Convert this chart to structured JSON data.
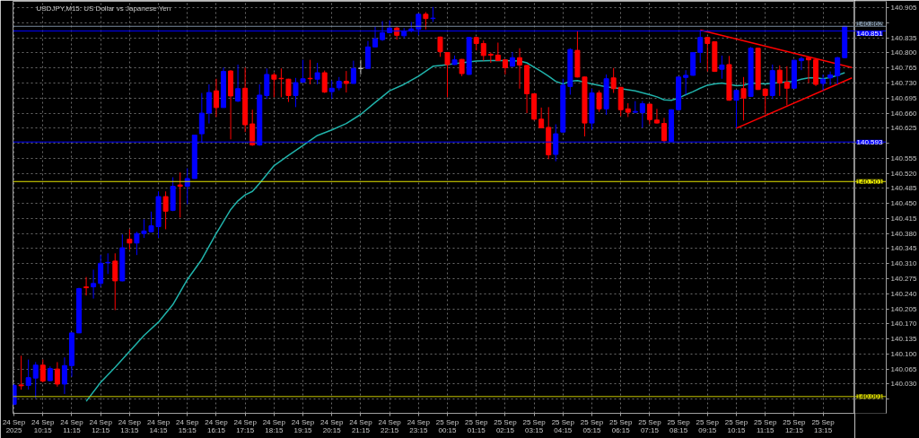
{
  "chart_data": {
    "type": "candlestick",
    "title": "USDJPY,M15: US Dollar vs Japanese Yen",
    "x": [
      "2025-09-24T09:15",
      "2025-09-24T09:30",
      "2025-09-24T09:45",
      "2025-09-24T10:00",
      "2025-09-24T10:15",
      "2025-09-24T10:30",
      "2025-09-24T10:45",
      "2025-09-24T11:00",
      "2025-09-24T11:15",
      "2025-09-24T11:30",
      "2025-09-24T11:45",
      "2025-09-24T12:00",
      "2025-09-24T12:15",
      "2025-09-24T12:30",
      "2025-09-24T12:45",
      "2025-09-24T13:00",
      "2025-09-24T13:15",
      "2025-09-24T13:30",
      "2025-09-24T13:45",
      "2025-09-24T14:00",
      "2025-09-24T14:15",
      "2025-09-24T14:30",
      "2025-09-24T14:45",
      "2025-09-24T15:00",
      "2025-09-24T15:15",
      "2025-09-24T15:30",
      "2025-09-24T15:45",
      "2025-09-24T16:00",
      "2025-09-24T16:15",
      "2025-09-24T16:30",
      "2025-09-24T16:45",
      "2025-09-24T17:00",
      "2025-09-24T17:15",
      "2025-09-24T17:30",
      "2025-09-24T17:45",
      "2025-09-24T18:00",
      "2025-09-24T18:15",
      "2025-09-24T18:30",
      "2025-09-24T18:45",
      "2025-09-24T19:00",
      "2025-09-24T19:15",
      "2025-09-24T19:30",
      "2025-09-24T19:45",
      "2025-09-24T20:00",
      "2025-09-24T20:15",
      "2025-09-24T20:30",
      "2025-09-24T20:45",
      "2025-09-24T21:00",
      "2025-09-24T21:15",
      "2025-09-24T21:30",
      "2025-09-24T21:45",
      "2025-09-24T22:00",
      "2025-09-24T22:15",
      "2025-09-24T22:30",
      "2025-09-24T22:45",
      "2025-09-24T23:00",
      "2025-09-24T23:15",
      "2025-09-24T23:30",
      "2025-09-24T23:45",
      "2025-09-25T00:00",
      "2025-09-25T00:15",
      "2025-09-25T00:30",
      "2025-09-25T00:45",
      "2025-09-25T01:00",
      "2025-09-25T01:15",
      "2025-09-25T01:30",
      "2025-09-25T01:45",
      "2025-09-25T02:00",
      "2025-09-25T02:15",
      "2025-09-25T02:30",
      "2025-09-25T02:45",
      "2025-09-25T03:00",
      "2025-09-25T03:15",
      "2025-09-25T03:30",
      "2025-09-25T03:45",
      "2025-09-25T04:00",
      "2025-09-25T04:15",
      "2025-09-25T04:30",
      "2025-09-25T04:45",
      "2025-09-25T05:00",
      "2025-09-25T05:15",
      "2025-09-25T05:30",
      "2025-09-25T05:45",
      "2025-09-25T06:00",
      "2025-09-25T06:15",
      "2025-09-25T06:30",
      "2025-09-25T06:45",
      "2025-09-25T07:00",
      "2025-09-25T07:15",
      "2025-09-25T07:30",
      "2025-09-25T07:45",
      "2025-09-25T08:00",
      "2025-09-25T08:15",
      "2025-09-25T08:30",
      "2025-09-25T08:45",
      "2025-09-25T09:00",
      "2025-09-25T09:15",
      "2025-09-25T09:30",
      "2025-09-25T09:45",
      "2025-09-25T10:00",
      "2025-09-25T10:15",
      "2025-09-25T10:30",
      "2025-09-25T10:45",
      "2025-09-25T11:00",
      "2025-09-25T11:15",
      "2025-09-25T11:30",
      "2025-09-25T11:45",
      "2025-09-25T12:00",
      "2025-09-25T12:15",
      "2025-09-25T12:30",
      "2025-09-25T12:45",
      "2025-09-25T13:00",
      "2025-09-25T13:15",
      "2025-09-25T13:30",
      "2025-09-25T13:45",
      "2025-09-25T14:00"
    ],
    "ohlc": [
      [
        139.983,
        140.03,
        139.981,
        140.027
      ],
      [
        140.028,
        140.096,
        140.017,
        140.026
      ],
      [
        140.027,
        140.087,
        140.017,
        140.045
      ],
      [
        140.044,
        140.081,
        139.997,
        140.074
      ],
      [
        140.074,
        140.087,
        140.034,
        140.037
      ],
      [
        140.038,
        140.071,
        140.037,
        140.066
      ],
      [
        140.065,
        140.081,
        140.024,
        140.03
      ],
      [
        140.03,
        140.092,
        140.007,
        140.073
      ],
      [
        140.073,
        140.151,
        140.047,
        140.149
      ],
      [
        140.149,
        140.254,
        140.149,
        140.252
      ],
      [
        140.256,
        140.279,
        140.236,
        140.254
      ],
      [
        140.256,
        140.296,
        140.229,
        140.264
      ],
      [
        140.264,
        140.33,
        140.256,
        140.311
      ],
      [
        140.312,
        140.334,
        140.286,
        140.313
      ],
      [
        140.316,
        140.334,
        140.202,
        140.27
      ],
      [
        140.27,
        140.378,
        140.269,
        140.347
      ],
      [
        140.367,
        140.39,
        140.343,
        140.358
      ],
      [
        140.358,
        140.384,
        140.33,
        140.38
      ],
      [
        140.38,
        140.413,
        140.37,
        140.386
      ],
      [
        140.384,
        140.431,
        140.384,
        140.398
      ],
      [
        140.396,
        140.478,
        140.37,
        140.466
      ],
      [
        140.466,
        140.478,
        140.39,
        140.432
      ],
      [
        140.434,
        140.511,
        140.432,
        140.49
      ],
      [
        140.493,
        140.522,
        140.417,
        140.49
      ],
      [
        140.49,
        140.532,
        140.448,
        140.508
      ],
      [
        140.508,
        140.61,
        140.508,
        140.609
      ],
      [
        140.612,
        140.707,
        140.592,
        140.66
      ],
      [
        140.66,
        140.727,
        140.636,
        140.708
      ],
      [
        140.712,
        140.74,
        140.651,
        140.673
      ],
      [
        140.673,
        140.766,
        140.673,
        140.757
      ],
      [
        140.758,
        140.76,
        140.599,
        140.7
      ],
      [
        140.688,
        140.773,
        140.686,
        140.717
      ],
      [
        140.718,
        140.766,
        140.616,
        140.633
      ],
      [
        140.635,
        140.668,
        140.584,
        140.586
      ],
      [
        140.586,
        140.727,
        140.584,
        140.702
      ],
      [
        140.701,
        140.764,
        140.693,
        140.75
      ],
      [
        140.749,
        140.754,
        140.697,
        140.739
      ],
      [
        140.741,
        140.764,
        140.697,
        140.74
      ],
      [
        140.739,
        140.74,
        140.686,
        140.701
      ],
      [
        140.701,
        140.742,
        140.674,
        140.731
      ],
      [
        140.732,
        140.784,
        140.73,
        140.74
      ],
      [
        140.741,
        140.784,
        140.727,
        140.74
      ],
      [
        140.739,
        140.777,
        140.727,
        140.754
      ],
      [
        140.754,
        140.759,
        140.707,
        140.709
      ],
      [
        140.71,
        140.736,
        140.693,
        140.718
      ],
      [
        140.719,
        140.744,
        140.713,
        140.734
      ],
      [
        140.734,
        140.758,
        140.708,
        140.729
      ],
      [
        140.729,
        140.782,
        140.729,
        140.764
      ],
      [
        140.764,
        140.784,
        140.75,
        140.764
      ],
      [
        140.764,
        140.828,
        140.764,
        140.814
      ],
      [
        140.814,
        140.861,
        140.814,
        140.833
      ],
      [
        140.831,
        140.874,
        140.828,
        140.847
      ],
      [
        140.847,
        140.876,
        140.846,
        140.858
      ],
      [
        140.858,
        140.861,
        140.831,
        140.841
      ],
      [
        140.84,
        140.858,
        140.834,
        140.851
      ],
      [
        140.851,
        140.872,
        140.848,
        140.856
      ],
      [
        140.855,
        140.892,
        140.841,
        140.89
      ],
      [
        140.89,
        140.895,
        140.855,
        140.88
      ],
      [
        140.88,
        140.907,
        140.872,
        140.881
      ],
      [
        140.837,
        140.838,
        140.791,
        140.803
      ],
      [
        140.801,
        140.802,
        140.697,
        140.773
      ],
      [
        140.773,
        140.794,
        140.772,
        140.784
      ],
      [
        140.785,
        140.786,
        140.746,
        140.752
      ],
      [
        140.75,
        140.837,
        140.749,
        140.836
      ],
      [
        140.836,
        140.837,
        140.806,
        140.822
      ],
      [
        140.822,
        140.829,
        140.782,
        140.794
      ],
      [
        140.797,
        140.801,
        140.777,
        140.795
      ],
      [
        140.795,
        140.824,
        140.781,
        140.782
      ],
      [
        140.784,
        140.785,
        140.75,
        140.766
      ],
      [
        140.769,
        140.802,
        140.768,
        140.789
      ],
      [
        140.789,
        140.811,
        140.717,
        140.772
      ],
      [
        140.771,
        140.772,
        140.66,
        140.705
      ],
      [
        140.705,
        140.706,
        140.643,
        140.646
      ],
      [
        140.646,
        140.673,
        140.625,
        140.626
      ],
      [
        140.627,
        140.674,
        140.553,
        140.563
      ],
      [
        140.564,
        140.634,
        140.548,
        140.612
      ],
      [
        140.616,
        140.74,
        140.615,
        140.725
      ],
      [
        140.722,
        140.811,
        140.703,
        140.808
      ],
      [
        140.806,
        140.851,
        140.743,
        140.744
      ],
      [
        140.744,
        140.745,
        140.606,
        140.637
      ],
      [
        140.637,
        140.717,
        140.622,
        140.707
      ],
      [
        140.707,
        140.713,
        140.663,
        140.67
      ],
      [
        140.67,
        140.75,
        140.656,
        140.74
      ],
      [
        140.742,
        140.765,
        140.707,
        140.717
      ],
      [
        140.72,
        140.721,
        140.653,
        140.668
      ],
      [
        140.67,
        140.683,
        140.651,
        140.662
      ],
      [
        140.662,
        140.688,
        140.66,
        140.664
      ],
      [
        140.661,
        140.688,
        140.626,
        140.682
      ],
      [
        140.681,
        140.682,
        140.634,
        140.645
      ],
      [
        140.644,
        140.67,
        140.636,
        140.637
      ],
      [
        140.636,
        140.649,
        140.592,
        140.596
      ],
      [
        140.594,
        140.669,
        140.593,
        140.668
      ],
      [
        140.668,
        140.745,
        140.667,
        140.744
      ],
      [
        140.743,
        140.76,
        140.703,
        140.748
      ],
      [
        140.748,
        140.802,
        140.747,
        140.801
      ],
      [
        140.801,
        140.853,
        140.777,
        140.836
      ],
      [
        140.836,
        140.837,
        140.757,
        140.822
      ],
      [
        140.826,
        140.827,
        140.756,
        140.757
      ],
      [
        140.762,
        140.794,
        140.74,
        140.772
      ],
      [
        140.773,
        140.793,
        140.689,
        140.69
      ],
      [
        140.69,
        140.714,
        140.626,
        140.713
      ],
      [
        140.717,
        140.744,
        140.643,
        140.695
      ],
      [
        140.699,
        140.814,
        140.698,
        140.811
      ],
      [
        140.811,
        140.812,
        140.714,
        140.715
      ],
      [
        140.716,
        140.717,
        140.657,
        140.701
      ],
      [
        140.701,
        140.773,
        140.693,
        140.759
      ],
      [
        140.76,
        140.771,
        140.7,
        140.73
      ],
      [
        140.732,
        140.769,
        140.678,
        140.718
      ],
      [
        140.718,
        140.784,
        140.717,
        140.783
      ],
      [
        140.782,
        140.791,
        140.76,
        140.787
      ],
      [
        140.789,
        140.791,
        140.73,
        140.784
      ],
      [
        140.784,
        140.787,
        140.723,
        140.727
      ],
      [
        140.729,
        140.75,
        140.713,
        140.739
      ],
      [
        140.742,
        140.757,
        140.725,
        140.749
      ],
      [
        140.747,
        140.791,
        140.727,
        140.789
      ],
      [
        140.789,
        140.863,
        140.788,
        140.862
      ]
    ],
    "colors": [
      "#0000ff",
      "#ff0000",
      "#0000ff",
      "#0000ff",
      "#ff0000",
      "#0000ff",
      "#ff0000",
      "#0000ff",
      "#0000ff",
      "#0000ff",
      "#ff0000",
      "#0000ff",
      "#0000ff",
      "#0000ff",
      "#ff0000",
      "#0000ff",
      "#ff0000",
      "#0000ff",
      "#0000ff",
      "#0000ff",
      "#0000ff",
      "#ff0000",
      "#0000ff",
      "#ff0000",
      "#0000ff",
      "#0000ff",
      "#0000ff",
      "#0000ff",
      "#ff0000",
      "#0000ff",
      "#ff0000",
      "#0000ff",
      "#ff0000",
      "#ff0000",
      "#0000ff",
      "#0000ff",
      "#ff0000",
      "#ff0000",
      "#ff0000",
      "#0000ff",
      "#0000ff",
      "#ff0000",
      "#0000ff",
      "#ff0000",
      "#0000ff",
      "#0000ff",
      "#ff0000",
      "#0000ff",
      "#c0c0c0",
      "#0000ff",
      "#0000ff",
      "#0000ff",
      "#0000ff",
      "#ff0000",
      "#0000ff",
      "#0000ff",
      "#0000ff",
      "#ff0000",
      "#0000ff",
      "#ff0000",
      "#ff0000",
      "#0000ff",
      "#ff0000",
      "#0000ff",
      "#ff0000",
      "#ff0000",
      "#ff0000",
      "#ff0000",
      "#ff0000",
      "#0000ff",
      "#ff0000",
      "#ff0000",
      "#ff0000",
      "#ff0000",
      "#ff0000",
      "#0000ff",
      "#0000ff",
      "#0000ff",
      "#ff0000",
      "#ff0000",
      "#0000ff",
      "#ff0000",
      "#0000ff",
      "#ff0000",
      "#ff0000",
      "#ff0000",
      "#0000ff",
      "#0000ff",
      "#ff0000",
      "#ff0000",
      "#ff0000",
      "#0000ff",
      "#0000ff",
      "#0000ff",
      "#0000ff",
      "#0000ff",
      "#ff0000",
      "#ff0000",
      "#0000ff",
      "#ff0000",
      "#0000ff",
      "#ff0000",
      "#0000ff",
      "#ff0000",
      "#ff0000",
      "#0000ff",
      "#ff0000",
      "#ff0000",
      "#0000ff",
      "#0000ff",
      "#ff0000",
      "#ff0000",
      "#0000ff",
      "#0000ff",
      "#0000ff",
      "#0000ff"
    ],
    "series": [
      {
        "type": "line",
        "color": "#20b2aa",
        "x": [
          "2025-09-24T11:45",
          "2025-09-24T12:15",
          "2025-09-24T12:45",
          "2025-09-24T13:15",
          "2025-09-24T13:45",
          "2025-09-24T14:15",
          "2025-09-24T14:45",
          "2025-09-24T15:15",
          "2025-09-24T15:45",
          "2025-09-24T16:15",
          "2025-09-24T16:45",
          "2025-09-24T17:00",
          "2025-09-24T17:15",
          "2025-09-24T17:30",
          "2025-09-24T17:45",
          "2025-09-24T18:15",
          "2025-09-24T18:45",
          "2025-09-24T19:15",
          "2025-09-24T19:45",
          "2025-09-24T20:15",
          "2025-09-24T20:45",
          "2025-09-24T21:15",
          "2025-09-24T21:45",
          "2025-09-24T22:15",
          "2025-09-24T22:45",
          "2025-09-24T23:15",
          "2025-09-24T23:45",
          "2025-09-25T00:00",
          "2025-09-25T00:15",
          "2025-09-25T00:45",
          "2025-09-25T01:15",
          "2025-09-25T01:45",
          "2025-09-25T02:15",
          "2025-09-25T02:45",
          "2025-09-25T03:00",
          "2025-09-25T03:15",
          "2025-09-25T03:30",
          "2025-09-25T03:45",
          "2025-09-25T04:00",
          "2025-09-25T04:15",
          "2025-09-25T04:30",
          "2025-09-25T04:45",
          "2025-09-25T05:15",
          "2025-09-25T05:45",
          "2025-09-25T06:15",
          "2025-09-25T06:45",
          "2025-09-25T07:15",
          "2025-09-25T07:30",
          "2025-09-25T07:45",
          "2025-09-25T08:00",
          "2025-09-25T08:15",
          "2025-09-25T08:30",
          "2025-09-25T08:45",
          "2025-09-25T09:00",
          "2025-09-25T09:15",
          "2025-09-25T09:30",
          "2025-09-25T09:45",
          "2025-09-25T10:00",
          "2025-09-25T10:15",
          "2025-09-25T10:30",
          "2025-09-25T10:45",
          "2025-09-25T11:15",
          "2025-09-25T11:45",
          "2025-09-25T12:15",
          "2025-09-25T12:30",
          "2025-09-25T12:45",
          "2025-09-25T13:00",
          "2025-09-25T13:15",
          "2025-09-25T13:30",
          "2025-09-25T13:45",
          "2025-09-25T14:00"
        ],
        "values": [
          139.99,
          140.034,
          140.069,
          140.106,
          140.143,
          140.174,
          140.215,
          140.273,
          140.32,
          140.38,
          140.436,
          140.456,
          140.47,
          140.478,
          140.497,
          140.538,
          140.562,
          140.585,
          140.608,
          140.621,
          140.636,
          140.657,
          140.685,
          140.712,
          140.727,
          140.746,
          140.769,
          140.771,
          140.773,
          140.777,
          140.781,
          140.782,
          140.782,
          140.781,
          140.777,
          140.767,
          140.757,
          140.746,
          140.734,
          140.728,
          140.734,
          140.736,
          140.728,
          140.721,
          140.717,
          140.712,
          140.703,
          140.698,
          140.691,
          140.69,
          140.695,
          140.703,
          140.71,
          140.718,
          140.725,
          140.728,
          140.73,
          140.727,
          140.724,
          140.725,
          140.73,
          140.728,
          140.731,
          140.734,
          140.739,
          140.742,
          140.742,
          140.74,
          140.743,
          140.748,
          140.754
        ]
      },
      {
        "type": "line",
        "color": "#ff0000",
        "x": [
          "2025-09-25T09:00",
          "2025-09-25T14:15"
        ],
        "values": [
          140.853,
          140.766
        ]
      },
      {
        "type": "line",
        "color": "#ff0000",
        "x": [
          "2025-09-25T10:15",
          "2025-09-25T14:15"
        ],
        "values": [
          140.625,
          140.742
        ]
      }
    ],
    "xlim": [
      "2025-09-24T09:13",
      "2025-09-25T14:21"
    ],
    "ylim": [
      139.962,
      140.92
    ],
    "xticks": [
      {
        "value": "2025-09-24T09:15",
        "label": "24 Sep 2025"
      },
      {
        "value": "2025-09-24T10:15",
        "label": "24 Sep 10:15"
      },
      {
        "value": "2025-09-24T11:15",
        "label": "24 Sep 11:15"
      },
      {
        "value": "2025-09-24T12:15",
        "label": "24 Sep 12:15"
      },
      {
        "value": "2025-09-24T13:15",
        "label": "24 Sep 13:15"
      },
      {
        "value": "2025-09-24T14:15",
        "label": "24 Sep 14:15"
      },
      {
        "value": "2025-09-24T15:15",
        "label": "24 Sep 15:15"
      },
      {
        "value": "2025-09-24T16:15",
        "label": "24 Sep 16:15"
      },
      {
        "value": "2025-09-24T17:15",
        "label": "24 Sep 17:15"
      },
      {
        "value": "2025-09-24T18:15",
        "label": "24 Sep 18:15"
      },
      {
        "value": "2025-09-24T19:15",
        "label": "24 Sep 19:15"
      },
      {
        "value": "2025-09-24T20:15",
        "label": "24 Sep 20:15"
      },
      {
        "value": "2025-09-24T21:15",
        "label": "24 Sep 21:15"
      },
      {
        "value": "2025-09-24T22:15",
        "label": "24 Sep 22:15"
      },
      {
        "value": "2025-09-24T23:15",
        "label": "24 Sep 23:15"
      },
      {
        "value": "2025-09-25T00:15",
        "label": "25 Sep 00:15"
      },
      {
        "value": "2025-09-25T01:15",
        "label": "25 Sep 01:15"
      },
      {
        "value": "2025-09-25T02:15",
        "label": "25 Sep 02:15"
      },
      {
        "value": "2025-09-25T03:15",
        "label": "25 Sep 03:15"
      },
      {
        "value": "2025-09-25T04:15",
        "label": "25 Sep 04:15"
      },
      {
        "value": "2025-09-25T05:15",
        "label": "25 Sep 05:15"
      },
      {
        "value": "2025-09-25T06:15",
        "label": "25 Sep 06:15"
      },
      {
        "value": "2025-09-25T07:15",
        "label": "25 Sep 07:15"
      },
      {
        "value": "2025-09-25T08:15",
        "label": "25 Sep 08:15"
      },
      {
        "value": "2025-09-25T09:15",
        "label": "25 Sep 09:15"
      },
      {
        "value": "2025-09-25T10:15",
        "label": "25 Sep 10:15"
      },
      {
        "value": "2025-09-25T11:15",
        "label": "25 Sep 11:15"
      },
      {
        "value": "2025-09-25T12:15",
        "label": "25 Sep 12:15"
      },
      {
        "value": "2025-09-25T13:15",
        "label": "25 Sep 13:15"
      }
    ],
    "yticks": [
      {
        "value": 140.905,
        "label": "140.905"
      },
      {
        "value": 140.87,
        "label": null
      },
      {
        "value": 140.835,
        "label": "140.835"
      },
      {
        "value": 140.8,
        "label": "140.800"
      },
      {
        "value": 140.765,
        "label": "140.765"
      },
      {
        "value": 140.73,
        "label": "140.730"
      },
      {
        "value": 140.695,
        "label": "140.695"
      },
      {
        "value": 140.66,
        "label": "140.660"
      },
      {
        "value": 140.625,
        "label": "140.625"
      },
      {
        "value": 140.59,
        "label": null
      },
      {
        "value": 140.555,
        "label": "140.555"
      },
      {
        "value": 140.52,
        "label": "140.520"
      },
      {
        "value": 140.485,
        "label": "140.485"
      },
      {
        "value": 140.45,
        "label": "140.450"
      },
      {
        "value": 140.415,
        "label": "140.415"
      },
      {
        "value": 140.38,
        "label": "140.380"
      },
      {
        "value": 140.345,
        "label": "140.345"
      },
      {
        "value": 140.31,
        "label": "140.310"
      },
      {
        "value": 140.275,
        "label": "140.275"
      },
      {
        "value": 140.24,
        "label": "140.240"
      },
      {
        "value": 140.205,
        "label": "140.205"
      },
      {
        "value": 140.17,
        "label": "140.170"
      },
      {
        "value": 140.135,
        "label": "140.135"
      },
      {
        "value": 140.1,
        "label": "140.100"
      },
      {
        "value": 140.065,
        "label": "140.065"
      },
      {
        "value": 140.03,
        "label": "140.030"
      },
      {
        "value": 139.995,
        "label": null
      }
    ],
    "ref_lines": [
      {
        "axis": "y",
        "value": 140.862,
        "label": "140.862",
        "color": "#778899"
      },
      {
        "axis": "y",
        "value": 140.851,
        "label": "140.851",
        "color": "#0000ff"
      },
      {
        "axis": "y",
        "value": 140.593,
        "label": "140.593",
        "color": "#0000ff"
      },
      {
        "axis": "y",
        "value": 140.501,
        "label": "140.501",
        "color": "#e6e600"
      },
      {
        "axis": "y",
        "value": 140.001,
        "label": "140.001",
        "color": "#c8c800"
      }
    ],
    "grid": true
  }
}
